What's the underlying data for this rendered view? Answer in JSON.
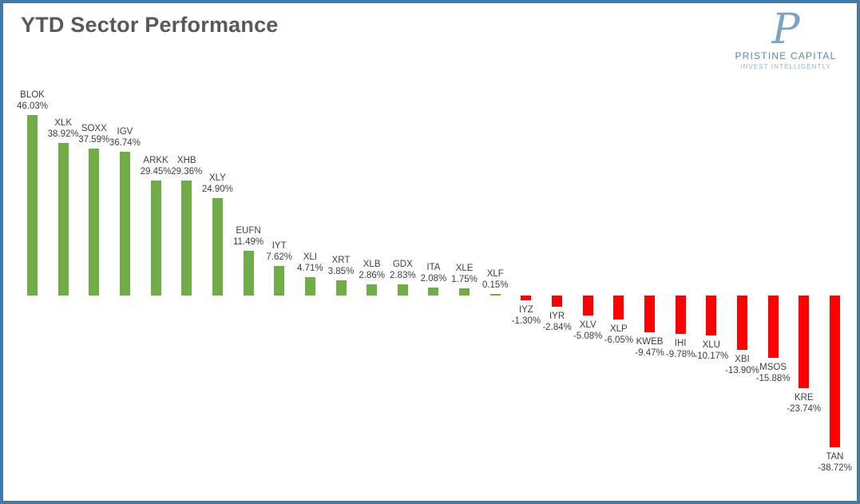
{
  "title": "YTD Sector Performance",
  "logo": {
    "monogram": "P",
    "name": "PRISTINE CAPITAL",
    "tagline": "INVEST INTELLIGENTLY",
    "accent_color": "#5D89AC"
  },
  "chart_data": {
    "type": "bar",
    "title": "YTD Sector Performance",
    "xlabel": "",
    "ylabel": "",
    "ylim": [
      -40,
      48
    ],
    "grid": false,
    "legend": "none",
    "axes_visible": false,
    "data_labels": "outside-end, ticker over percent",
    "colors": {
      "positive": "#70AD47",
      "negative": "#FF0000"
    },
    "categories": [
      "BLOK",
      "XLK",
      "SOXX",
      "IGV",
      "ARKK",
      "XHB",
      "XLY",
      "EUFN",
      "IYT",
      "XLI",
      "XRT",
      "XLB",
      "GDX",
      "ITA",
      "XLE",
      "XLF",
      "IYZ",
      "IYR",
      "XLV",
      "XLP",
      "KWEB",
      "IHI",
      "XLU",
      "XBI",
      "MSOS",
      "KRE",
      "TAN"
    ],
    "values": [
      46.03,
      38.92,
      37.59,
      36.74,
      29.45,
      29.36,
      24.9,
      11.49,
      7.62,
      4.71,
      3.85,
      2.86,
      2.83,
      2.08,
      1.75,
      0.15,
      -1.3,
      -2.84,
      -5.08,
      -6.05,
      -9.47,
      -9.78,
      -10.17,
      -13.9,
      -15.88,
      -23.74,
      -38.72
    ],
    "labels": [
      "46.03%",
      "38.92%",
      "37.59%",
      "36.74%",
      "29.45%",
      "29.36%",
      "24.90%",
      "11.49%",
      "7.62%",
      "4.71%",
      "3.85%",
      "2.86%",
      "2.83%",
      "2.08%",
      "1.75%",
      "0.15%",
      "-1.30%",
      "-2.84%",
      "-5.08%",
      "-6.05%",
      "-9.47%",
      "-9.78%",
      "-10.17%",
      "-13.90%",
      "-15.88%",
      "-23.74%",
      "-38.72%"
    ]
  }
}
